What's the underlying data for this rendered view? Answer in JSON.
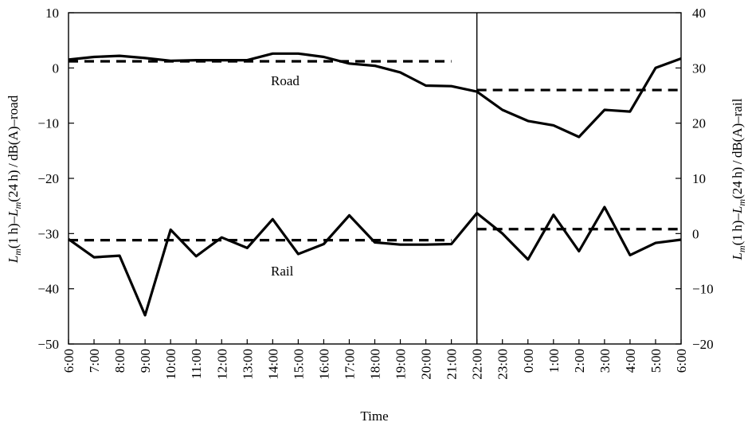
{
  "chart_data": {
    "type": "line",
    "xlabel": "Time",
    "ylabel_left": "L_m(1h)–L_m(24h)/dB(A)–road",
    "ylabel_right": "L_m(1h)–L_m(24h)/dB(A)–rail",
    "ylim_left": [
      -50,
      10
    ],
    "ylim_right": [
      -20,
      40
    ],
    "yticks_left": [
      10,
      0,
      -10,
      -20,
      -30,
      -40,
      -50
    ],
    "yticks_right": [
      40,
      30,
      20,
      10,
      0,
      -10,
      -20
    ],
    "categories": [
      "6:00",
      "7:00",
      "8:00",
      "9:00",
      "10:00",
      "11:00",
      "12:00",
      "13:00",
      "14:00",
      "15:00",
      "16:00",
      "17:00",
      "18:00",
      "19:00",
      "20:00",
      "21:00",
      "22:00",
      "23:00",
      "0:00",
      "1:00",
      "2:00",
      "3:00",
      "4:00",
      "5:00",
      "6:00"
    ],
    "grid": false,
    "series": [
      {
        "name": "Road",
        "axis": "left",
        "values": [
          1.5,
          2.0,
          2.2,
          1.8,
          1.3,
          1.4,
          1.4,
          1.4,
          2.6,
          2.6,
          2.0,
          0.8,
          0.4,
          -0.8,
          -3.2,
          -3.3,
          -4.3,
          -7.6,
          -9.6,
          -10.4,
          -12.5,
          -7.6,
          -7.9,
          0.0,
          1.7
        ],
        "day_mean": 1.2,
        "night_mean": -4.0
      },
      {
        "name": "Rail",
        "axis": "left",
        "values": [
          -31.0,
          -34.3,
          -34.0,
          -44.8,
          -29.3,
          -34.1,
          -30.7,
          -32.6,
          -27.4,
          -33.7,
          -31.9,
          -26.7,
          -31.6,
          -32.0,
          -32.0,
          -31.9,
          -26.3,
          -30.0,
          -34.7,
          -26.6,
          -33.2,
          -25.2,
          -33.9,
          -31.7,
          -31.1
        ],
        "day_mean": -31.2,
        "night_mean": -29.2
      }
    ],
    "divider_at": "22:00",
    "annotations": [
      {
        "text": "Road",
        "near": "Road"
      },
      {
        "text": "Rail",
        "near": "Rail"
      }
    ]
  }
}
